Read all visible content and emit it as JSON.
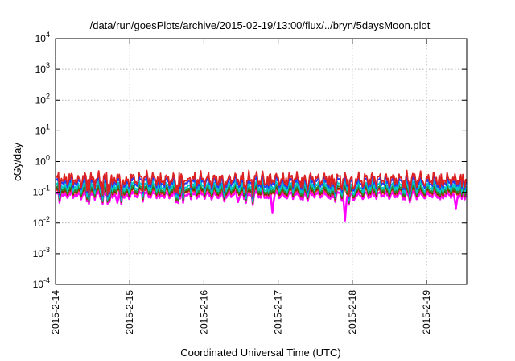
{
  "chart_data": {
    "type": "line",
    "title": "/data/run/goesPlots/archive/2015-02-19/13:00/flux/../bryn/5daysMoon.plot",
    "xlabel": "Coordinated Universal Time (UTC)",
    "ylabel": "cGy/day",
    "y_scale": "log",
    "ylim": [
      0.0001,
      10000
    ],
    "y_ticks": [
      {
        "base": "10",
        "exp": "-4",
        "value": 0.0001
      },
      {
        "base": "10",
        "exp": "-3",
        "value": 0.001
      },
      {
        "base": "10",
        "exp": "-2",
        "value": 0.01
      },
      {
        "base": "10",
        "exp": "-1",
        "value": 0.1
      },
      {
        "base": "10",
        "exp": "0",
        "value": 1
      },
      {
        "base": "10",
        "exp": "1",
        "value": 10
      },
      {
        "base": "10",
        "exp": "2",
        "value": 100
      },
      {
        "base": "10",
        "exp": "3",
        "value": 1000
      },
      {
        "base": "10",
        "exp": "4",
        "value": 10000
      }
    ],
    "xlim": [
      "2015-02-14 00:00",
      "2015-02-19 13:00"
    ],
    "x_ticks": [
      "2015-2-14",
      "2015-2-15",
      "2015-2-16",
      "2015-2-17",
      "2015-2-18",
      "2015-2-19"
    ],
    "grid": true,
    "series": [
      {
        "color": "#dd2222",
        "level": 0.27
      },
      {
        "color": "#1f3cff",
        "level": 0.22
      },
      {
        "color": "#00c8c8",
        "level": 0.16
      },
      {
        "color": "#2e8b2e",
        "level": 0.13
      },
      {
        "color": "#7a2a00",
        "level": 0.115
      },
      {
        "color": "#ff3333",
        "level": 0.105
      },
      {
        "color": "#ff00ff",
        "level": 0.085
      }
    ],
    "dips": [
      {
        "x": "2015-02-14 20:00",
        "y": 0.045
      },
      {
        "x": "2015-02-16 11:00",
        "y": 0.048
      },
      {
        "x": "2015-02-16 22:00",
        "y": 0.022
      },
      {
        "x": "2015-02-17 21:30",
        "y": 0.012
      },
      {
        "x": "2015-02-19 09:30",
        "y": 0.03
      }
    ]
  }
}
